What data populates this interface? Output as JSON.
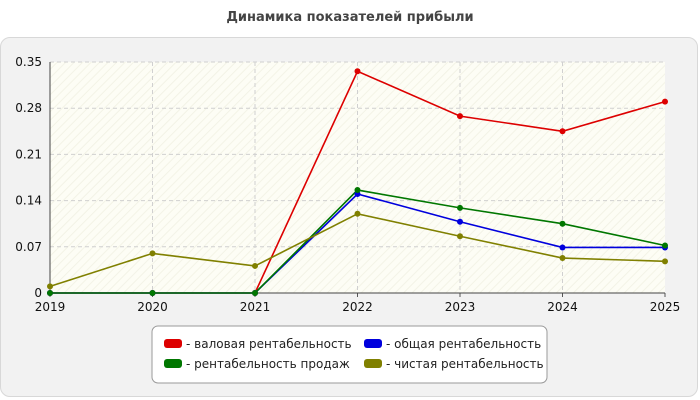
{
  "title": "Динамика показателей прибыли",
  "chart_data": {
    "type": "line",
    "title": "Динамика показателей прибыли",
    "xlabel": "",
    "ylabel": "",
    "x": [
      "2019",
      "2020",
      "2021",
      "2022",
      "2023",
      "2024",
      "2025"
    ],
    "ylim": [
      0,
      0.35
    ],
    "yticks": [
      "0",
      "0.07",
      "0.14",
      "0.21",
      "0.28",
      "0.35"
    ],
    "grid": true,
    "legend_position": "bottom",
    "series": [
      {
        "name": "- валовая рентабельность",
        "color": "#dd0000",
        "values": [
          0,
          0,
          0,
          0.336,
          0.268,
          0.245,
          0.29
        ]
      },
      {
        "name": "- общая рентабельность",
        "color": "#0000dd",
        "values": [
          0,
          0,
          0,
          0.15,
          0.108,
          0.069,
          0.069
        ]
      },
      {
        "name": "- рентабельность продаж",
        "color": "#007700",
        "values": [
          0,
          0,
          0,
          0.156,
          0.129,
          0.105,
          0.072
        ]
      },
      {
        "name": "- чистая рентабельность",
        "color": "#808000",
        "values": [
          0.01,
          0.06,
          0.041,
          0.12,
          0.086,
          0.053,
          0.048
        ]
      }
    ]
  }
}
